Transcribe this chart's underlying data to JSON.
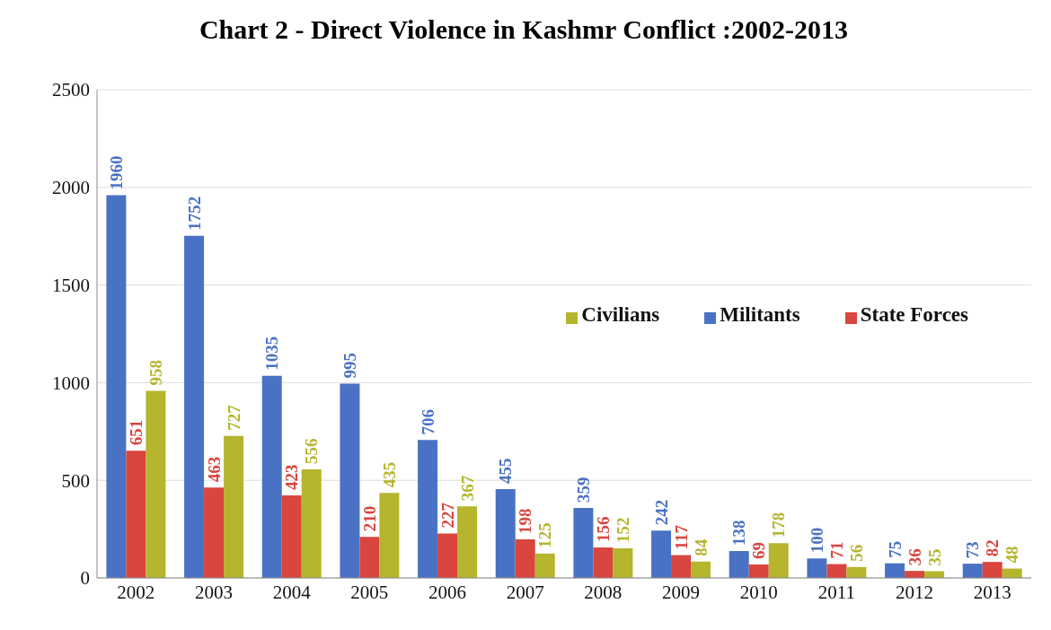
{
  "chart_data": {
    "type": "bar",
    "title": "Chart 2 - Direct  Violence in Kashmr Conflict :2002-2013",
    "categories": [
      "2002",
      "2003",
      "2004",
      "2005",
      "2006",
      "2007",
      "2008",
      "2009",
      "2010",
      "2011",
      "2012",
      "2013"
    ],
    "series": [
      {
        "name": "Militants",
        "color": "#4a72c4",
        "values": [
          1960,
          1752,
          1035,
          995,
          706,
          455,
          359,
          242,
          138,
          100,
          75,
          73
        ]
      },
      {
        "name": "State Forces",
        "color": "#d9453f",
        "values": [
          651,
          463,
          423,
          210,
          227,
          198,
          156,
          117,
          69,
          71,
          36,
          82
        ]
      },
      {
        "name": "Civilians",
        "color": "#b5b52e",
        "values": [
          958,
          727,
          556,
          435,
          367,
          125,
          152,
          84,
          178,
          56,
          35,
          48
        ]
      }
    ],
    "ylim": [
      0,
      2500
    ],
    "yticks": [
      0,
      500,
      1000,
      1500,
      2000,
      2500
    ],
    "grid": "y",
    "legend": "right",
    "data_labels": true
  }
}
